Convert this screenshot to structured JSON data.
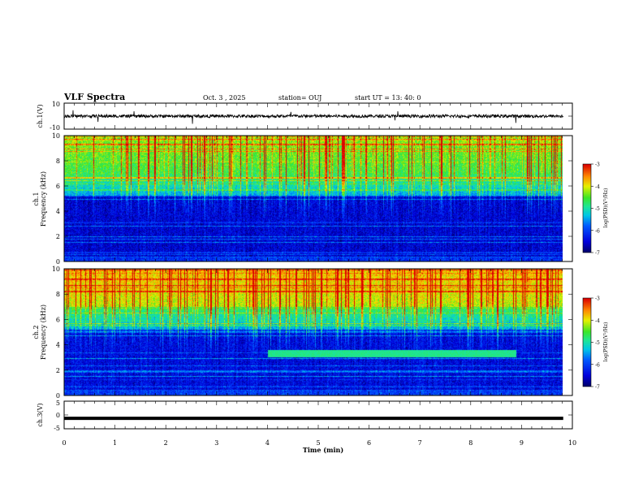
{
  "header": {
    "title": "VLF Spectra",
    "date": "Oct. 3 , 2025",
    "station": "station= OUJ",
    "start": "start UT = 13: 40: 0"
  },
  "chart_data": [
    {
      "type": "line",
      "name": "ch1-waveform",
      "ylabel": "ch.1(V)",
      "ylim": [
        -10,
        10
      ],
      "y_ticks": [
        "10",
        "-10"
      ],
      "xlim": [
        0,
        10
      ],
      "level": 0,
      "noise_amplitude": 1.2
    },
    {
      "type": "heatmap",
      "name": "ch1-spectrogram",
      "ylabel_channel": "ch.1",
      "ylabel": "Frequency (kHz)",
      "ylim": [
        0,
        10
      ],
      "y_ticks": [
        "0",
        "2",
        "4",
        "6",
        "8",
        "10"
      ],
      "xlim": [
        0,
        10
      ],
      "colorbar": {
        "label": "log(PSD)(V²/Hz)",
        "range": [
          -7,
          -3
        ],
        "ticks": [
          "-3",
          "-4",
          "-5",
          "-6",
          "-7"
        ]
      }
    },
    {
      "type": "heatmap",
      "name": "ch2-spectrogram",
      "ylabel_channel": "ch.2",
      "ylabel": "Frequency (kHz)",
      "ylim": [
        0,
        10
      ],
      "y_ticks": [
        "0",
        "2",
        "4",
        "6",
        "8",
        "10"
      ],
      "xlim": [
        0,
        10
      ],
      "colorbar": {
        "label": "log(PSD)(V²/Hz)",
        "range": [
          -7,
          -3
        ],
        "ticks": [
          "-3",
          "-4",
          "-5",
          "-6",
          "-7"
        ]
      }
    },
    {
      "type": "line",
      "name": "ch3-waveform",
      "ylabel": "ch.3(V)",
      "ylim": [
        -5,
        5
      ],
      "y_ticks": [
        "5",
        "0",
        "-5"
      ],
      "xlim": [
        0,
        10
      ],
      "level": -1.2
    }
  ],
  "x_axis": {
    "label": "Time (min)",
    "ticks": [
      "0",
      "1",
      "2",
      "3",
      "4",
      "5",
      "6",
      "7",
      "8",
      "9",
      "10"
    ],
    "data_end": 9.82
  }
}
